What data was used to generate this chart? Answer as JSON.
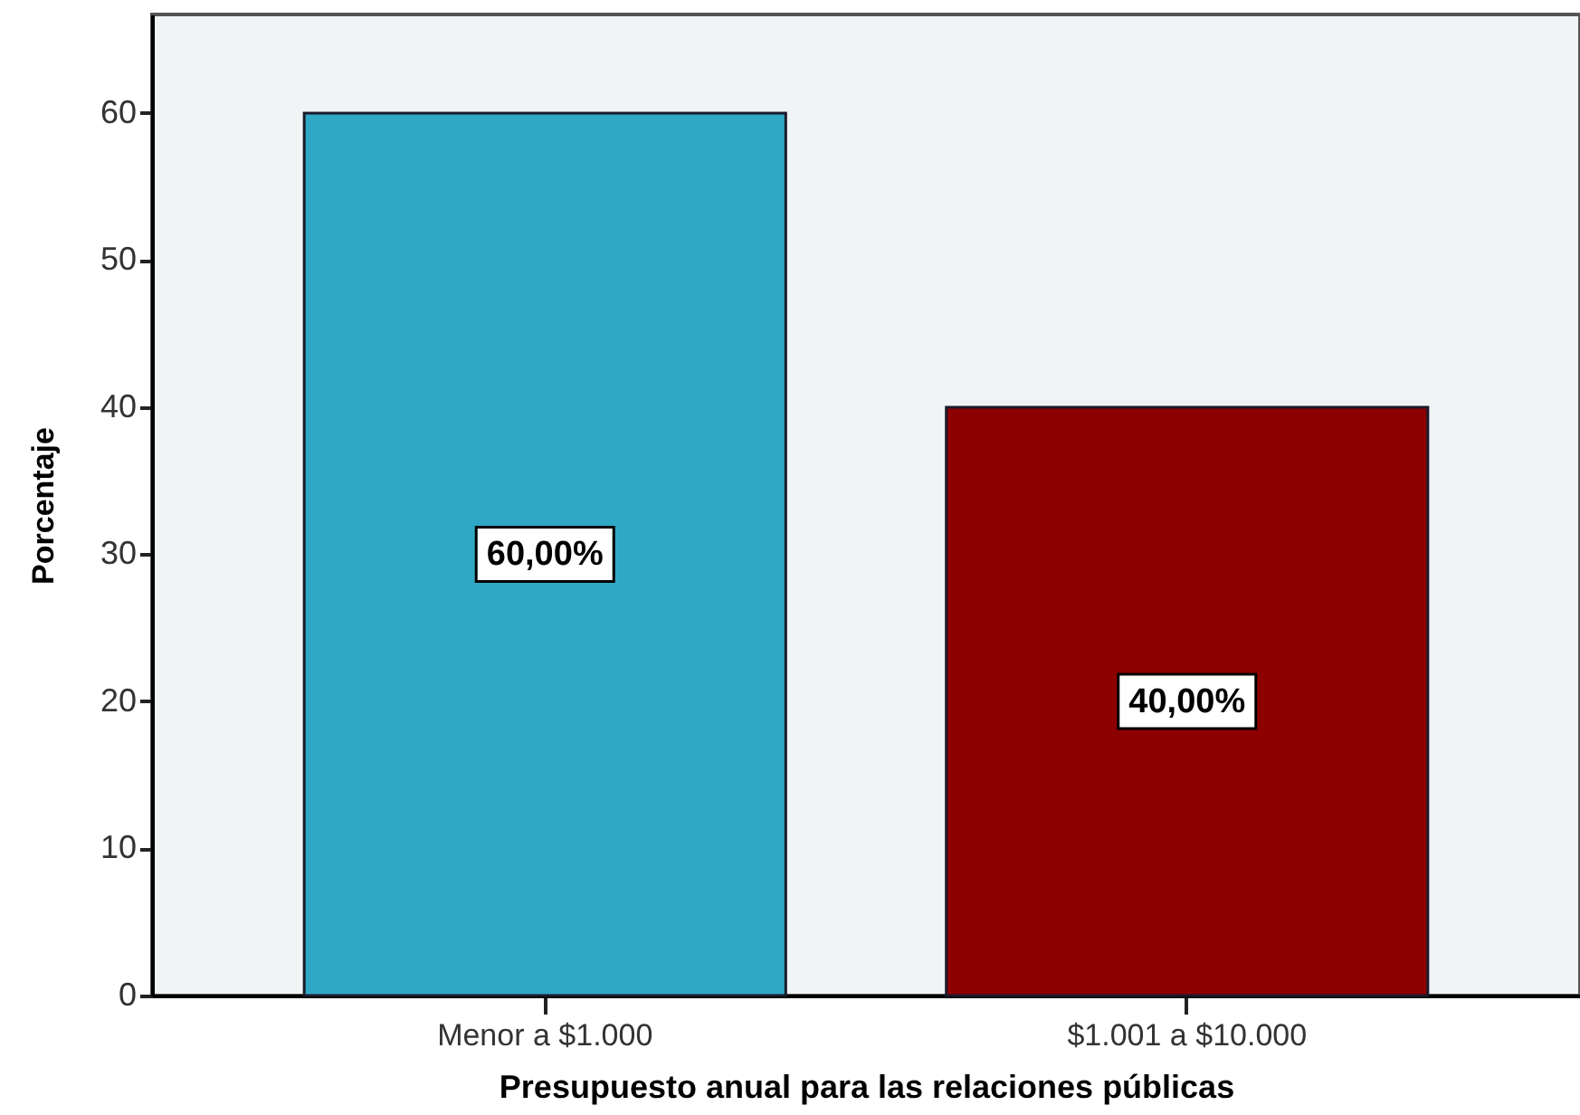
{
  "chart_data": {
    "type": "bar",
    "xlabel": "Presupuesto anual para las relaciones públicas",
    "ylabel": "Porcentaje",
    "categories": [
      "Menor a $1.000",
      "$1.001 a $10.000"
    ],
    "values": [
      60,
      40
    ],
    "colors": [
      "#2ea8c4",
      "#8c0000"
    ],
    "value_labels": [
      "60,00%",
      "40,00%"
    ],
    "ylim": [
      0,
      66.7
    ],
    "yticks": [
      0,
      10,
      20,
      30,
      40,
      50,
      60
    ],
    "grid": false
  }
}
